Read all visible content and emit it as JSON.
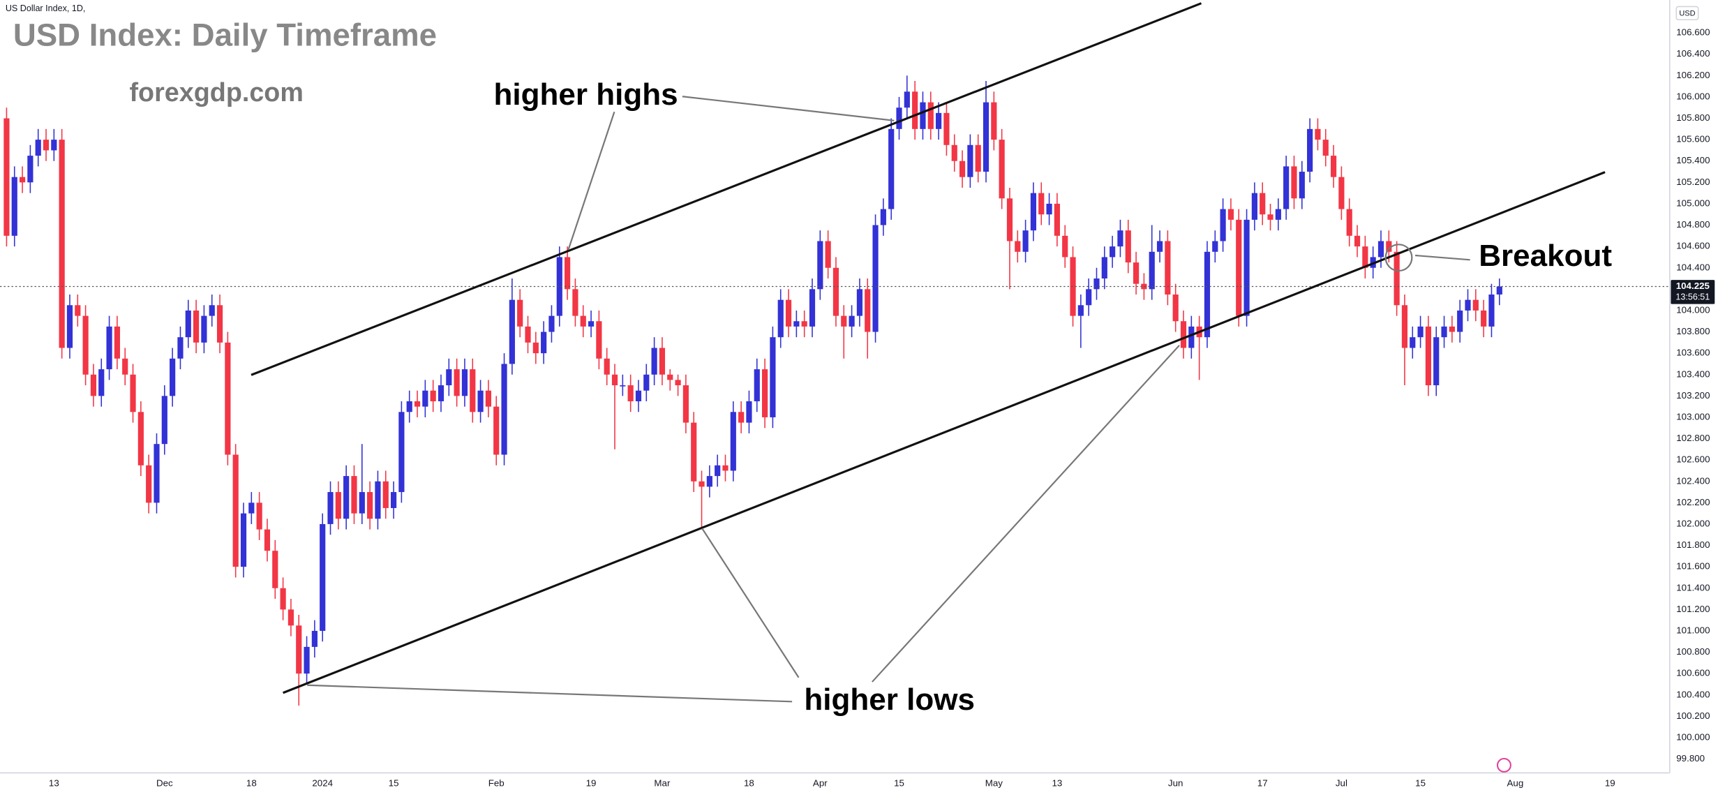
{
  "chart_data": {
    "type": "candlestick",
    "title": "USD Index: Daily Timeframe",
    "watermark": "forexgdp.com",
    "symbol_info": "US Dollar Index, 1D,",
    "currency": "USD",
    "annotations": {
      "higher_highs": "higher highs",
      "higher_lows": "higher lows",
      "breakout": "Breakout"
    },
    "last_price": 104.225,
    "countdown": "13:56:51",
    "up_color": "#3232d6",
    "down_color": "#f23645",
    "grid": false,
    "xlim": [
      -0.833,
      210.56
    ],
    "ylim": [
      99.67,
      106.908
    ],
    "xticks": [
      {
        "value": 6,
        "label": "13"
      },
      {
        "value": 20,
        "label": "Dec"
      },
      {
        "value": 31,
        "label": "18"
      },
      {
        "value": 40,
        "label": "2024"
      },
      {
        "value": 49,
        "label": "15"
      },
      {
        "value": 62,
        "label": "Feb"
      },
      {
        "value": 74,
        "label": "19"
      },
      {
        "value": 83,
        "label": "Mar"
      },
      {
        "value": 94,
        "label": "18"
      },
      {
        "value": 103,
        "label": "Apr"
      },
      {
        "value": 113,
        "label": "15"
      },
      {
        "value": 125,
        "label": "May"
      },
      {
        "value": 133,
        "label": "13"
      },
      {
        "value": 148,
        "label": "Jun"
      },
      {
        "value": 159,
        "label": "17"
      },
      {
        "value": 169,
        "label": "Jul"
      },
      {
        "value": 179,
        "label": "15"
      },
      {
        "value": 191,
        "label": "Aug"
      },
      {
        "value": 203,
        "label": "19"
      }
    ],
    "yticks": [
      {
        "value": 99.8,
        "label": "99.800"
      },
      {
        "value": 100,
        "label": "100.000"
      },
      {
        "value": 100.2,
        "label": "100.200"
      },
      {
        "value": 100.4,
        "label": "100.400"
      },
      {
        "value": 100.6,
        "label": "100.600"
      },
      {
        "value": 100.8,
        "label": "100.800"
      },
      {
        "value": 101,
        "label": "101.000"
      },
      {
        "value": 101.2,
        "label": "101.200"
      },
      {
        "value": 101.4,
        "label": "101.400"
      },
      {
        "value": 101.6,
        "label": "101.600"
      },
      {
        "value": 101.8,
        "label": "101.800"
      },
      {
        "value": 102,
        "label": "102.000"
      },
      {
        "value": 102.2,
        "label": "102.200"
      },
      {
        "value": 102.4,
        "label": "102.400"
      },
      {
        "value": 102.6,
        "label": "102.600"
      },
      {
        "value": 102.8,
        "label": "102.800"
      },
      {
        "value": 103,
        "label": "103.000"
      },
      {
        "value": 103.2,
        "label": "103.200"
      },
      {
        "value": 103.4,
        "label": "103.400"
      },
      {
        "value": 103.6,
        "label": "103.600"
      },
      {
        "value": 103.8,
        "label": "103.800"
      },
      {
        "value": 104,
        "label": "104.000"
      },
      {
        "value": 104.2,
        "label": "104.200"
      },
      {
        "value": 104.4,
        "label": "104.400"
      },
      {
        "value": 104.6,
        "label": "104.600"
      },
      {
        "value": 104.8,
        "label": "104.800"
      },
      {
        "value": 105,
        "label": "105.000"
      },
      {
        "value": 105.2,
        "label": "105.200"
      },
      {
        "value": 105.4,
        "label": "105.400"
      },
      {
        "value": 105.6,
        "label": "105.600"
      },
      {
        "value": 105.8,
        "label": "105.800"
      },
      {
        "value": 106,
        "label": "106.000"
      },
      {
        "value": 106.2,
        "label": "106.200"
      },
      {
        "value": 106.4,
        "label": "106.400"
      },
      {
        "value": 106.6,
        "label": "106.600"
      }
    ],
    "open": [
      105.8,
      104.7,
      105.25,
      105.2,
      105.45,
      105.6,
      105.5,
      105.6,
      103.65,
      104.05,
      103.95,
      103.4,
      103.2,
      103.45,
      103.85,
      103.55,
      103.4,
      103.05,
      102.55,
      102.2,
      102.75,
      103.2,
      103.55,
      103.75,
      104.0,
      103.7,
      103.95,
      104.05,
      103.7,
      102.65,
      101.6,
      102.1,
      102.2,
      101.95,
      101.75,
      101.4,
      101.2,
      101.05,
      100.6,
      100.85,
      101.0,
      102.0,
      102.3,
      102.05,
      102.45,
      102.1,
      102.3,
      102.05,
      102.4,
      102.15,
      102.3,
      103.05,
      103.15,
      103.1,
      103.25,
      103.15,
      103.3,
      103.45,
      103.2,
      103.45,
      103.05,
      103.25,
      103.1,
      102.65,
      103.5,
      104.1,
      103.85,
      103.7,
      103.6,
      103.8,
      103.95,
      104.5,
      104.2,
      103.95,
      103.85,
      103.9,
      103.55,
      103.4,
      103.3,
      103.3,
      103.15,
      103.25,
      103.4,
      103.65,
      103.4,
      103.35,
      103.3,
      102.95,
      102.4,
      102.35,
      102.45,
      102.55,
      102.5,
      103.05,
      102.95,
      103.15,
      103.45,
      103.0,
      103.75,
      104.1,
      103.85,
      103.9,
      103.85,
      104.2,
      104.65,
      104.4,
      103.95,
      103.85,
      103.95,
      104.2,
      103.8,
      104.8,
      104.95,
      105.7,
      105.9,
      106.05,
      105.7,
      105.95,
      105.7,
      105.85,
      105.55,
      105.4,
      105.25,
      105.55,
      105.3,
      105.95,
      105.6,
      105.05,
      104.65,
      104.55,
      104.75,
      105.1,
      104.9,
      105.0,
      104.7,
      104.5,
      103.95,
      104.05,
      104.2,
      104.3,
      104.5,
      104.6,
      104.75,
      104.45,
      104.25,
      104.2,
      104.55,
      104.65,
      104.15,
      103.9,
      103.65,
      103.85,
      103.75,
      104.55,
      104.65,
      104.95,
      104.85,
      103.95,
      104.85,
      105.1,
      104.9,
      104.85,
      104.95,
      105.35,
      105.05,
      105.3,
      105.7,
      105.6,
      105.45,
      105.25,
      104.95,
      104.7,
      104.6,
      104.4,
      104.5,
      104.65,
      104.55,
      104.05,
      103.65,
      103.75,
      103.85,
      103.3,
      103.75,
      103.85,
      103.8,
      104.0,
      104.1,
      104.0,
      103.85,
      104.15
    ],
    "high": [
      105.9,
      105.35,
      105.35,
      105.55,
      105.7,
      105.7,
      105.7,
      105.7,
      104.15,
      104.15,
      104.05,
      103.5,
      103.55,
      103.95,
      103.95,
      103.65,
      103.5,
      103.15,
      102.65,
      102.85,
      103.3,
      103.65,
      103.85,
      104.1,
      104.1,
      104.05,
      104.15,
      104.15,
      103.8,
      102.75,
      102.2,
      102.3,
      102.3,
      102.05,
      101.85,
      101.5,
      101.3,
      101.15,
      100.95,
      101.1,
      102.1,
      102.4,
      102.4,
      102.55,
      102.55,
      102.75,
      102.4,
      102.5,
      102.5,
      102.4,
      103.15,
      103.25,
      103.25,
      103.35,
      103.35,
      103.4,
      103.55,
      103.55,
      103.55,
      103.55,
      103.35,
      103.35,
      103.2,
      103.6,
      104.3,
      104.2,
      103.95,
      103.8,
      103.9,
      104.05,
      104.6,
      104.6,
      104.3,
      104.05,
      104.0,
      104.0,
      103.65,
      103.5,
      103.4,
      103.4,
      103.35,
      103.5,
      103.75,
      103.75,
      103.45,
      103.4,
      103.4,
      103.05,
      102.5,
      102.55,
      102.65,
      102.65,
      103.15,
      103.15,
      103.25,
      103.55,
      103.55,
      103.85,
      104.2,
      104.2,
      104.0,
      104.0,
      104.3,
      104.75,
      104.75,
      104.5,
      104.05,
      104.05,
      104.3,
      104.3,
      104.9,
      105.05,
      105.8,
      106.0,
      106.2,
      106.15,
      106.05,
      106.05,
      105.95,
      105.95,
      105.65,
      105.5,
      105.65,
      105.65,
      106.15,
      106.05,
      105.7,
      105.15,
      104.75,
      104.85,
      105.2,
      105.2,
      105.1,
      105.1,
      104.8,
      104.6,
      104.15,
      104.3,
      104.4,
      104.6,
      104.7,
      104.85,
      104.85,
      104.55,
      104.35,
      104.8,
      104.75,
      104.75,
      104.25,
      104.0,
      103.95,
      103.95,
      104.65,
      104.75,
      105.05,
      105.05,
      104.95,
      104.95,
      105.2,
      105.2,
      105.0,
      105.05,
      105.45,
      105.45,
      105.4,
      105.8,
      105.8,
      105.7,
      105.55,
      105.35,
      105.05,
      104.8,
      104.7,
      104.6,
      104.75,
      104.75,
      104.65,
      104.15,
      103.85,
      103.95,
      103.95,
      103.85,
      103.95,
      103.95,
      104.1,
      104.2,
      104.2,
      104.1,
      104.25,
      104.3
    ],
    "low": [
      104.6,
      104.6,
      105.1,
      105.1,
      105.35,
      105.4,
      105.4,
      103.55,
      103.55,
      103.85,
      103.3,
      103.1,
      103.1,
      103.35,
      103.45,
      103.3,
      102.95,
      102.45,
      102.1,
      102.1,
      102.65,
      103.1,
      103.45,
      103.65,
      103.6,
      103.6,
      103.85,
      103.6,
      102.55,
      101.5,
      101.5,
      102.0,
      101.85,
      101.65,
      101.3,
      101.1,
      100.95,
      100.3,
      100.5,
      100.75,
      100.9,
      101.9,
      101.95,
      101.95,
      102.0,
      102.0,
      101.95,
      101.95,
      102.05,
      102.05,
      102.2,
      102.95,
      103.0,
      103.0,
      103.05,
      103.05,
      103.2,
      103.1,
      103.1,
      102.95,
      102.95,
      103.0,
      102.55,
      102.55,
      103.4,
      103.75,
      103.6,
      103.5,
      103.5,
      103.7,
      103.85,
      104.1,
      103.85,
      103.75,
      103.75,
      103.45,
      103.3,
      102.7,
      103.2,
      103.05,
      103.05,
      103.15,
      103.3,
      103.3,
      103.25,
      103.2,
      102.85,
      102.3,
      101.95,
      102.25,
      102.35,
      102.4,
      102.4,
      102.85,
      102.85,
      103.05,
      102.9,
      102.9,
      103.65,
      103.75,
      103.75,
      103.75,
      103.75,
      104.1,
      104.3,
      103.85,
      103.55,
      103.75,
      103.85,
      103.55,
      103.7,
      104.7,
      104.85,
      105.6,
      105.8,
      105.6,
      105.6,
      105.6,
      105.6,
      105.45,
      105.3,
      105.15,
      105.15,
      105.2,
      105.2,
      105.5,
      104.95,
      104.2,
      104.45,
      104.45,
      104.65,
      104.8,
      104.8,
      104.6,
      104.4,
      103.85,
      103.65,
      103.95,
      104.1,
      104.2,
      104.4,
      104.5,
      104.35,
      104.15,
      104.1,
      104.1,
      104.45,
      104.05,
      103.8,
      103.55,
      103.55,
      103.35,
      103.65,
      104.45,
      104.55,
      104.75,
      103.85,
      103.85,
      104.75,
      104.8,
      104.75,
      104.75,
      104.85,
      104.95,
      104.95,
      105.2,
      105.5,
      105.35,
      105.15,
      104.85,
      104.6,
      104.5,
      104.3,
      104.3,
      104.4,
      104.45,
      103.95,
      103.3,
      103.55,
      103.65,
      103.2,
      103.2,
      103.65,
      103.7,
      103.7,
      103.9,
      103.9,
      103.75,
      103.75,
      104.05
    ],
    "close": [
      104.7,
      105.25,
      105.2,
      105.45,
      105.6,
      105.5,
      105.6,
      103.65,
      104.05,
      103.95,
      103.4,
      103.2,
      103.45,
      103.85,
      103.55,
      103.4,
      103.05,
      102.55,
      102.2,
      102.75,
      103.2,
      103.55,
      103.75,
      104.0,
      103.7,
      103.95,
      104.05,
      103.7,
      102.65,
      101.6,
      102.1,
      102.2,
      101.95,
      101.75,
      101.4,
      101.2,
      101.05,
      100.6,
      100.85,
      101.0,
      102.0,
      102.3,
      102.05,
      102.45,
      102.1,
      102.3,
      102.05,
      102.4,
      102.15,
      102.3,
      103.05,
      103.15,
      103.1,
      103.25,
      103.15,
      103.3,
      103.45,
      103.2,
      103.45,
      103.05,
      103.25,
      103.1,
      102.65,
      103.5,
      104.1,
      103.85,
      103.7,
      103.6,
      103.8,
      103.95,
      104.5,
      104.2,
      103.95,
      103.85,
      103.9,
      103.55,
      103.4,
      103.3,
      103.3,
      103.15,
      103.25,
      103.4,
      103.65,
      103.4,
      103.35,
      103.3,
      102.95,
      102.4,
      102.35,
      102.45,
      102.55,
      102.5,
      103.05,
      102.95,
      103.15,
      103.45,
      103.0,
      103.75,
      104.1,
      103.85,
      103.9,
      103.85,
      104.2,
      104.65,
      104.4,
      103.95,
      103.85,
      103.95,
      104.2,
      103.8,
      104.8,
      104.95,
      105.7,
      105.9,
      106.05,
      105.7,
      105.95,
      105.7,
      105.85,
      105.55,
      105.4,
      105.25,
      105.55,
      105.3,
      105.95,
      105.6,
      105.05,
      104.65,
      104.55,
      104.75,
      105.1,
      104.9,
      105.0,
      104.7,
      104.5,
      103.95,
      104.05,
      104.2,
      104.3,
      104.5,
      104.6,
      104.75,
      104.45,
      104.25,
      104.2,
      104.55,
      104.65,
      104.15,
      103.9,
      103.65,
      103.85,
      103.75,
      104.55,
      104.65,
      104.95,
      104.85,
      103.95,
      104.85,
      105.1,
      104.9,
      104.85,
      104.95,
      105.35,
      105.05,
      105.3,
      105.7,
      105.6,
      105.45,
      105.25,
      104.95,
      104.7,
      104.6,
      104.4,
      104.5,
      104.65,
      104.55,
      104.05,
      103.65,
      103.75,
      103.85,
      103.3,
      103.75,
      103.85,
      103.8,
      104.0,
      104.1,
      104.0,
      103.85,
      104.15,
      104.225
    ]
  }
}
